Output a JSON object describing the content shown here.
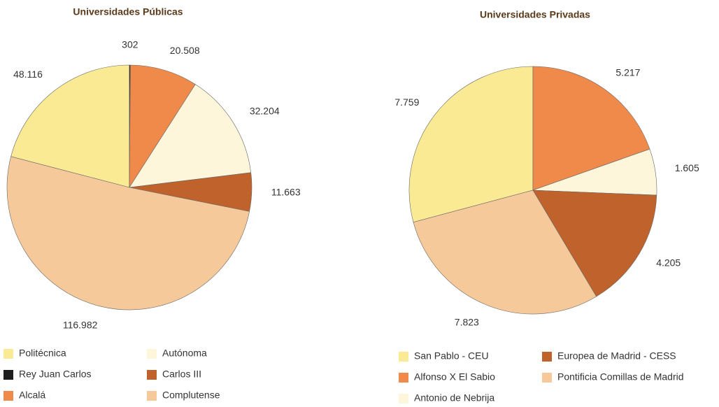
{
  "chart_data": [
    {
      "type": "pie",
      "title": "Universidades Públicas",
      "categories": [
        "Politécnica",
        "Rey Juan Carlos",
        "Alcalá",
        "Autónoma",
        "Carlos III",
        "Complutense"
      ],
      "values": [
        48116,
        302,
        20508,
        32204,
        11663,
        116982
      ],
      "value_labels": [
        "48.116",
        "302",
        "20.508",
        "32.204",
        "11.663",
        "116.982"
      ],
      "colors": [
        "#fbea94",
        "#1e1e1e",
        "#f08a4b",
        "#fdf6da",
        "#c0622c",
        "#f6c99a"
      ]
    },
    {
      "type": "pie",
      "title": "Universidades Privadas",
      "categories": [
        "San Pablo - CEU",
        "Alfonso X El Sabio",
        "Antonio de Nebrija",
        "Europea de Madrid - CESS",
        "Pontificia Comillas de Madrid"
      ],
      "values": [
        7759,
        5217,
        1605,
        4205,
        7823
      ],
      "value_labels": [
        "7.759",
        "5.217",
        "1.605",
        "4.205",
        "7.823"
      ],
      "colors": [
        "#fbea94",
        "#f08a4b",
        "#fdf6da",
        "#c0622c",
        "#f6c99a"
      ]
    }
  ]
}
